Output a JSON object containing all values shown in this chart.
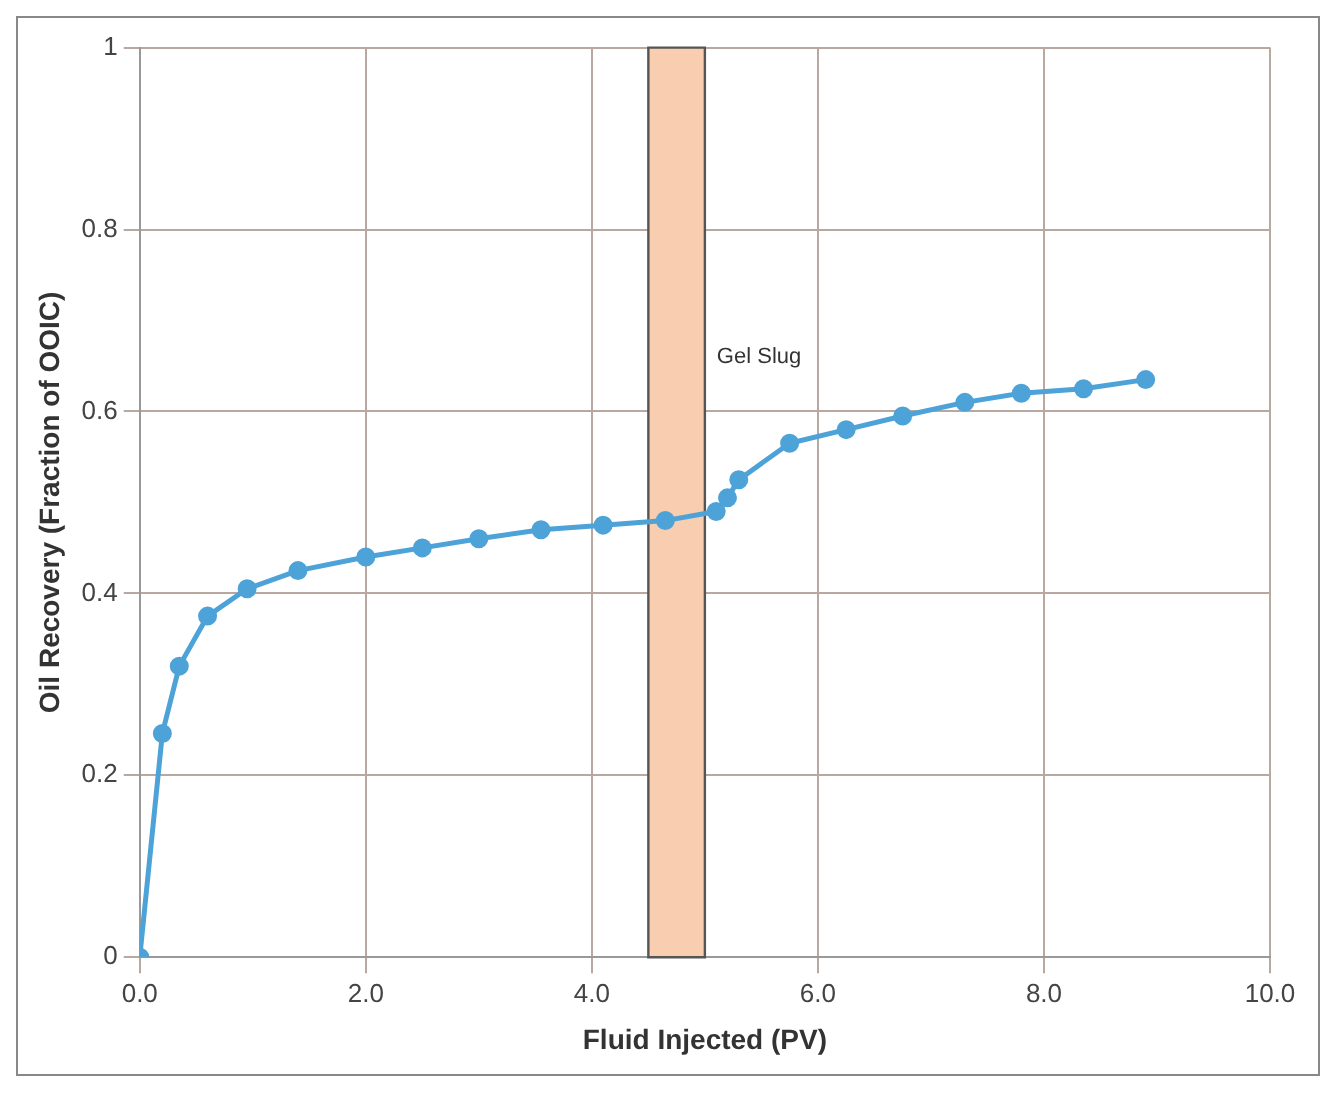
{
  "chart_data": {
    "type": "line",
    "xlabel": "Fluid Injected (PV)",
    "ylabel": "Oil Recovery (Fraction of OOIC)",
    "x": [
      0,
      0.2,
      0.35,
      0.6,
      0.95,
      1.4,
      2.0,
      2.5,
      3.0,
      3.55,
      4.1,
      4.65,
      5.1,
      5.2,
      5.3,
      5.75,
      6.25,
      6.75,
      7.3,
      7.8,
      8.35,
      8.9
    ],
    "series": [
      {
        "color": "#4da3d8",
        "values": [
          0,
          0.246,
          0.32,
          0.375,
          0.405,
          0.425,
          0.44,
          0.45,
          0.46,
          0.47,
          0.475,
          0.48,
          0.49,
          0.505,
          0.525,
          0.565,
          0.58,
          0.595,
          0.61,
          0.62,
          0.625,
          0.635
        ]
      }
    ],
    "xlim": [
      0,
      10
    ],
    "xticks": [
      {
        "value": 0,
        "label": "0.0"
      },
      {
        "value": 2,
        "label": "2.0"
      },
      {
        "value": 4,
        "label": "4.0"
      },
      {
        "value": 6,
        "label": "6.0"
      },
      {
        "value": 8,
        "label": "8.0"
      },
      {
        "value": 10,
        "label": "10.0"
      }
    ],
    "ylim": [
      0,
      1
    ],
    "yticks": [
      0,
      0.2,
      0.4,
      0.6,
      0.8,
      1
    ],
    "bands": [
      {
        "axis": "x",
        "from": 4.5,
        "to": 5.0,
        "label": "Gel Slug",
        "color": "#f9cdb0"
      }
    ],
    "grid": true,
    "marker": "circle",
    "line_style": "solid"
  }
}
